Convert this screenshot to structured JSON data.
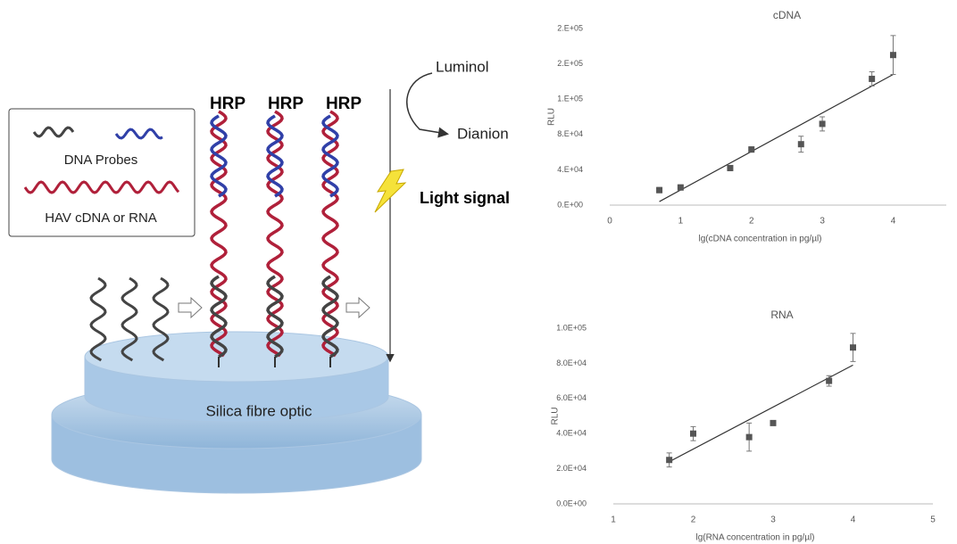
{
  "diagram": {
    "legend_probes": "DNA Probes",
    "legend_target": "HAV cDNA or RNA",
    "hrp": [
      "HRP",
      "HRP",
      "HRP"
    ],
    "luminol": "Luminol",
    "dianion": "Dianion",
    "light_signal": "Light signal",
    "fibre": "Silica fibre optic"
  },
  "chart_data": [
    {
      "type": "scatter",
      "title": "cDNA",
      "x_label": "lg(cDNA concentration in pg/µl)",
      "y_label": "RLU",
      "x": [
        0.7,
        1,
        1.7,
        2,
        2.7,
        3,
        3.7,
        4
      ],
      "values": [
        17000,
        20000,
        42000,
        63000,
        69000,
        92000,
        143000,
        170000
      ],
      "errors": [
        3000,
        3000,
        3000,
        3000,
        9000,
        8000,
        8000,
        22000
      ],
      "color": "#555555",
      "trend": {
        "x": [
          0.7,
          4
        ],
        "values": [
          4000,
          148000
        ]
      },
      "xlim": [
        0,
        4.75
      ],
      "ylim": [
        0,
        200000
      ],
      "xticks": [
        0,
        1,
        2,
        3,
        4
      ],
      "yticks": [
        {
          "value": 0,
          "label": "0.E+00"
        },
        {
          "value": 40000,
          "label": "4.E+04"
        },
        {
          "value": 80000,
          "label": "8.E+04"
        },
        {
          "value": 120000,
          "label": "1.E+05"
        },
        {
          "value": 160000,
          "label": "2.E+05"
        },
        {
          "value": 200000,
          "label": "2.E+05"
        }
      ]
    },
    {
      "type": "scatter",
      "title": "RNA",
      "x_label": "lg(RNA concentration in pg/µl)",
      "y_label": "RLU",
      "x": [
        1.7,
        2,
        2.7,
        3,
        3.7,
        4
      ],
      "values": [
        25000,
        40000,
        38000,
        46000,
        70000,
        89000
      ],
      "errors": [
        4000,
        4000,
        8000,
        1000,
        3000,
        8000
      ],
      "color": "#555555",
      "trend": {
        "x": [
          1.7,
          4
        ],
        "values": [
          24000,
          79000
        ]
      },
      "xlim": [
        1,
        5
      ],
      "ylim": [
        0,
        100000
      ],
      "xticks": [
        1,
        2,
        3,
        4,
        5
      ],
      "yticks": [
        {
          "value": 0,
          "label": "0.0E+00"
        },
        {
          "value": 20000,
          "label": "2.0E+04"
        },
        {
          "value": 40000,
          "label": "4.0E+04"
        },
        {
          "value": 60000,
          "label": "6.0E+04"
        },
        {
          "value": 80000,
          "label": "8.0E+04"
        },
        {
          "value": 100000,
          "label": "1.0E+05"
        }
      ]
    }
  ]
}
